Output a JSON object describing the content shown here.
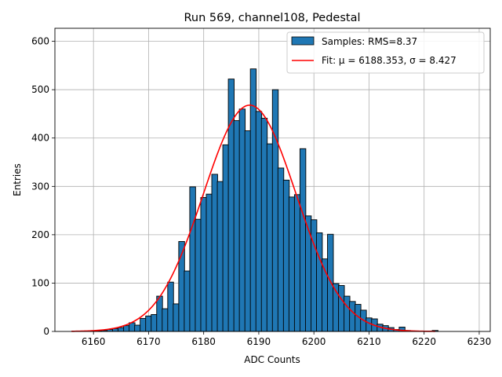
{
  "chart_data": {
    "type": "bar",
    "title": "Run 569, channel108, Pedestal",
    "xlabel": "ADC Counts",
    "ylabel": "Entries",
    "xlim": [
      6153,
      6232
    ],
    "ylim": [
      0,
      627
    ],
    "xticks": [
      6160,
      6170,
      6180,
      6190,
      6200,
      6210,
      6220,
      6230
    ],
    "yticks": [
      0,
      100,
      200,
      300,
      400,
      500,
      600
    ],
    "grid": true,
    "legend_position": "top-right",
    "histogram": {
      "name": "Samples: RMS=8.37",
      "color": "#1f77b4",
      "bin_width": 1.06,
      "bins": [
        [
          6156,
          0
        ],
        [
          6157,
          0
        ],
        [
          6158,
          0
        ],
        [
          6159,
          0
        ],
        [
          6160,
          1
        ],
        [
          6161,
          1
        ],
        [
          6162,
          2
        ],
        [
          6163,
          4
        ],
        [
          6164,
          6
        ],
        [
          6165,
          8
        ],
        [
          6166,
          12
        ],
        [
          6167,
          18
        ],
        [
          6168,
          13
        ],
        [
          6169,
          27
        ],
        [
          6170,
          32
        ],
        [
          6171,
          35
        ],
        [
          6172,
          73
        ],
        [
          6173,
          47
        ],
        [
          6174,
          102
        ],
        [
          6175,
          57
        ],
        [
          6176,
          186
        ],
        [
          6177,
          125
        ],
        [
          6178,
          299
        ],
        [
          6179,
          232
        ],
        [
          6180,
          277
        ],
        [
          6181,
          284
        ],
        [
          6182,
          325
        ],
        [
          6183,
          310
        ],
        [
          6184,
          386
        ],
        [
          6185,
          522
        ],
        [
          6186,
          436
        ],
        [
          6187,
          460
        ],
        [
          6188,
          415
        ],
        [
          6189,
          543
        ],
        [
          6190,
          455
        ],
        [
          6191,
          441
        ],
        [
          6192,
          388
        ],
        [
          6193,
          500
        ],
        [
          6194,
          338
        ],
        [
          6195,
          313
        ],
        [
          6196,
          278
        ],
        [
          6197,
          283
        ],
        [
          6198,
          378
        ],
        [
          6199,
          239
        ],
        [
          6200,
          231
        ],
        [
          6201,
          204
        ],
        [
          6202,
          150
        ],
        [
          6203,
          201
        ],
        [
          6204,
          99
        ],
        [
          6205,
          95
        ],
        [
          6206,
          73
        ],
        [
          6207,
          62
        ],
        [
          6208,
          56
        ],
        [
          6209,
          44
        ],
        [
          6210,
          28
        ],
        [
          6211,
          26
        ],
        [
          6212,
          15
        ],
        [
          6213,
          12
        ],
        [
          6214,
          8
        ],
        [
          6215,
          4
        ],
        [
          6216,
          9
        ],
        [
          6217,
          2
        ],
        [
          6218,
          1
        ],
        [
          6219,
          0
        ],
        [
          6220,
          0
        ],
        [
          6221,
          0
        ],
        [
          6222,
          2
        ]
      ]
    },
    "fit": {
      "name": "Fit: μ = 6188.353, σ = 8.427",
      "color": "#ff0000",
      "mu": 6188.353,
      "sigma": 8.427,
      "amplitude": 468,
      "x_range": [
        6156,
        6222
      ]
    }
  }
}
